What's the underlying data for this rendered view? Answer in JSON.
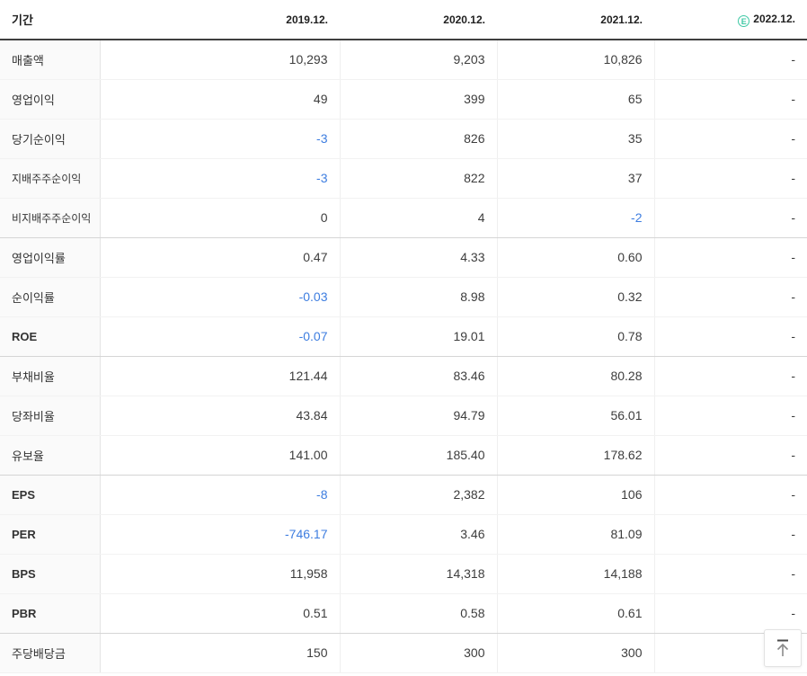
{
  "table": {
    "header": {
      "period_label": "기간",
      "estimate_icon_letter": "E",
      "columns": [
        {
          "label": "2019.12.",
          "estimate": false
        },
        {
          "label": "2020.12.",
          "estimate": false
        },
        {
          "label": "2021.12.",
          "estimate": false
        },
        {
          "label": "2022.12.",
          "estimate": true
        }
      ]
    },
    "rows": [
      {
        "label": "매출액",
        "sub": false,
        "bold": false,
        "group_end": false,
        "values": [
          {
            "v": "10,293",
            "neg": false
          },
          {
            "v": "9,203",
            "neg": false
          },
          {
            "v": "10,826",
            "neg": false
          },
          {
            "v": "-",
            "neg": false
          }
        ]
      },
      {
        "label": "영업이익",
        "sub": false,
        "bold": false,
        "group_end": false,
        "values": [
          {
            "v": "49",
            "neg": false
          },
          {
            "v": "399",
            "neg": false
          },
          {
            "v": "65",
            "neg": false
          },
          {
            "v": "-",
            "neg": false
          }
        ]
      },
      {
        "label": "당기순이익",
        "sub": false,
        "bold": false,
        "group_end": false,
        "values": [
          {
            "v": "-3",
            "neg": true
          },
          {
            "v": "826",
            "neg": false
          },
          {
            "v": "35",
            "neg": false
          },
          {
            "v": "-",
            "neg": false
          }
        ]
      },
      {
        "label": "지배주주순이익",
        "sub": true,
        "bold": false,
        "group_end": false,
        "values": [
          {
            "v": "-3",
            "neg": true
          },
          {
            "v": "822",
            "neg": false
          },
          {
            "v": "37",
            "neg": false
          },
          {
            "v": "-",
            "neg": false
          }
        ]
      },
      {
        "label": "비지배주주순이익",
        "sub": true,
        "bold": false,
        "group_end": true,
        "values": [
          {
            "v": "0",
            "neg": false
          },
          {
            "v": "4",
            "neg": false
          },
          {
            "v": "-2",
            "neg": true
          },
          {
            "v": "-",
            "neg": false
          }
        ]
      },
      {
        "label": "영업이익률",
        "sub": false,
        "bold": false,
        "group_end": false,
        "values": [
          {
            "v": "0.47",
            "neg": false
          },
          {
            "v": "4.33",
            "neg": false
          },
          {
            "v": "0.60",
            "neg": false
          },
          {
            "v": "-",
            "neg": false
          }
        ]
      },
      {
        "label": "순이익률",
        "sub": false,
        "bold": false,
        "group_end": false,
        "values": [
          {
            "v": "-0.03",
            "neg": true
          },
          {
            "v": "8.98",
            "neg": false
          },
          {
            "v": "0.32",
            "neg": false
          },
          {
            "v": "-",
            "neg": false
          }
        ]
      },
      {
        "label": "ROE",
        "sub": false,
        "bold": true,
        "group_end": true,
        "values": [
          {
            "v": "-0.07",
            "neg": true
          },
          {
            "v": "19.01",
            "neg": false
          },
          {
            "v": "0.78",
            "neg": false
          },
          {
            "v": "-",
            "neg": false
          }
        ]
      },
      {
        "label": "부채비율",
        "sub": false,
        "bold": false,
        "group_end": false,
        "values": [
          {
            "v": "121.44",
            "neg": false
          },
          {
            "v": "83.46",
            "neg": false
          },
          {
            "v": "80.28",
            "neg": false
          },
          {
            "v": "-",
            "neg": false
          }
        ]
      },
      {
        "label": "당좌비율",
        "sub": false,
        "bold": false,
        "group_end": false,
        "values": [
          {
            "v": "43.84",
            "neg": false
          },
          {
            "v": "94.79",
            "neg": false
          },
          {
            "v": "56.01",
            "neg": false
          },
          {
            "v": "-",
            "neg": false
          }
        ]
      },
      {
        "label": "유보율",
        "sub": false,
        "bold": false,
        "group_end": true,
        "values": [
          {
            "v": "141.00",
            "neg": false
          },
          {
            "v": "185.40",
            "neg": false
          },
          {
            "v": "178.62",
            "neg": false
          },
          {
            "v": "-",
            "neg": false
          }
        ]
      },
      {
        "label": "EPS",
        "sub": false,
        "bold": true,
        "group_end": false,
        "values": [
          {
            "v": "-8",
            "neg": true
          },
          {
            "v": "2,382",
            "neg": false
          },
          {
            "v": "106",
            "neg": false
          },
          {
            "v": "-",
            "neg": false
          }
        ]
      },
      {
        "label": "PER",
        "sub": false,
        "bold": true,
        "group_end": false,
        "values": [
          {
            "v": "-746.17",
            "neg": true
          },
          {
            "v": "3.46",
            "neg": false
          },
          {
            "v": "81.09",
            "neg": false
          },
          {
            "v": "-",
            "neg": false
          }
        ]
      },
      {
        "label": "BPS",
        "sub": false,
        "bold": true,
        "group_end": false,
        "values": [
          {
            "v": "11,958",
            "neg": false
          },
          {
            "v": "14,318",
            "neg": false
          },
          {
            "v": "14,188",
            "neg": false
          },
          {
            "v": "-",
            "neg": false
          }
        ]
      },
      {
        "label": "PBR",
        "sub": false,
        "bold": true,
        "group_end": true,
        "values": [
          {
            "v": "0.51",
            "neg": false
          },
          {
            "v": "0.58",
            "neg": false
          },
          {
            "v": "0.61",
            "neg": false
          },
          {
            "v": "-",
            "neg": false
          }
        ]
      },
      {
        "label": "주당배당금",
        "sub": false,
        "bold": false,
        "group_end": false,
        "values": [
          {
            "v": "150",
            "neg": false
          },
          {
            "v": "300",
            "neg": false
          },
          {
            "v": "300",
            "neg": false
          },
          {
            "v": "-",
            "neg": false
          }
        ]
      }
    ]
  },
  "scroll_top_button": {
    "icon": "arrow-up-to-top-icon"
  },
  "colors": {
    "negative_blue": "#3d7de0",
    "estimate_green": "#3ec8a4",
    "header_line": "#3f3f3f"
  }
}
